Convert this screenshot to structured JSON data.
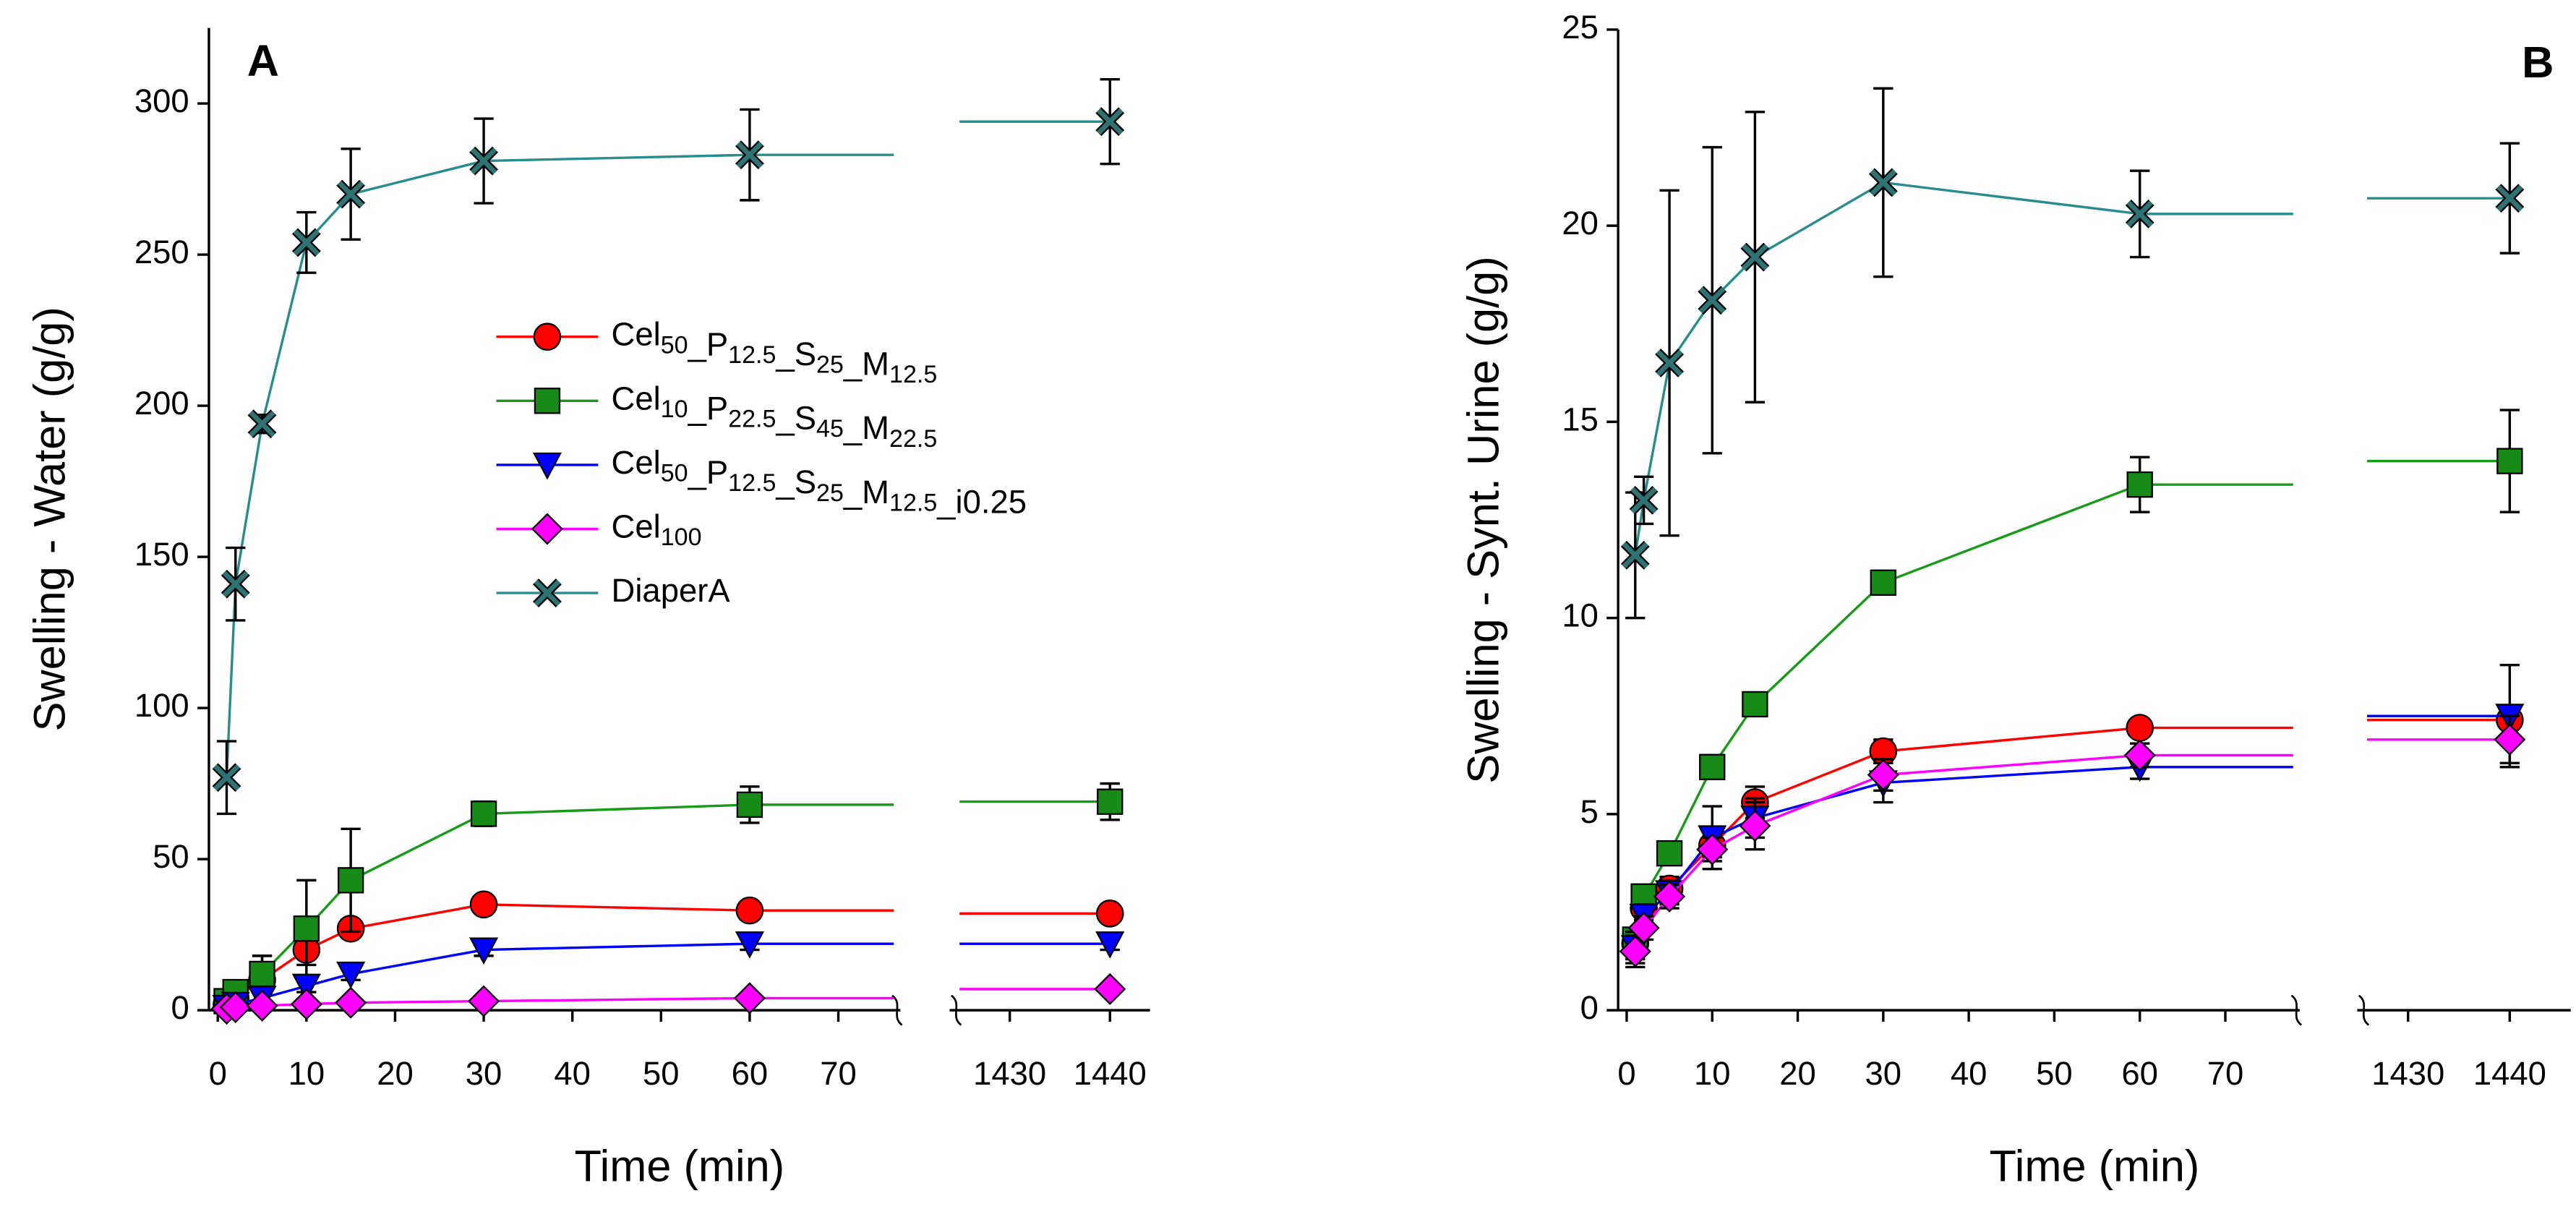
{
  "chart_data": [
    {
      "type": "line",
      "label": "A",
      "label_loc": "upper left",
      "legend_loc": "center",
      "xlabel": "Time (min)",
      "ylabel": "Swelling - Water (g/g)",
      "x": [
        1,
        2,
        5,
        10,
        15,
        30,
        60,
        1440
      ],
      "xlim": [
        [
          -1,
          77
        ],
        [
          1424,
          1444
        ]
      ],
      "xticks": [
        0,
        10,
        20,
        30,
        40,
        50,
        60,
        70,
        1430,
        1440
      ],
      "ylim": [
        0,
        325
      ],
      "yticks": [
        0,
        50,
        100,
        150,
        200,
        250,
        300
      ],
      "series": [
        {
          "name": "Cel50_P12.5_S25_M12.5",
          "color": "#ff0000",
          "marker": "circle",
          "values": [
            2,
            4,
            10,
            20,
            27,
            35,
            33,
            32
          ],
          "errors": [
            1,
            2,
            8,
            5,
            3,
            2,
            2,
            2
          ]
        },
        {
          "name": "Cel10_P22.5_S45_M22.5",
          "color": "#1a9a1a",
          "marker": "square",
          "values": [
            3,
            6,
            12,
            27,
            43,
            65,
            68,
            69
          ],
          "errors": [
            1,
            2,
            6,
            16,
            17,
            4,
            6,
            6
          ]
        },
        {
          "name": "Cel50_P12.5_S25_M12.5_i0.25",
          "color": "#0000ff",
          "marker": "triangle-down",
          "values": [
            1,
            2,
            4,
            8,
            12,
            20,
            22,
            22
          ],
          "errors": [
            1,
            1,
            2,
            2,
            2,
            2,
            2,
            2
          ]
        },
        {
          "name": "Cel100",
          "color": "#ff00ff",
          "marker": "diamond",
          "values": [
            0.5,
            1,
            1.5,
            2,
            2.5,
            3,
            4,
            7
          ],
          "errors": [
            0.5,
            0.5,
            0.5,
            0.5,
            0.5,
            0.5,
            0.5,
            0.5
          ]
        },
        {
          "name": "DiaperA",
          "color": "#2a8c8c",
          "marker": "x",
          "values": [
            77,
            141,
            194,
            254,
            270,
            281,
            283,
            294
          ],
          "errors": [
            12,
            12,
            3,
            10,
            15,
            14,
            15,
            14
          ]
        }
      ]
    },
    {
      "type": "line",
      "label": "B",
      "label_loc": "upper right",
      "xlabel": "Time (min)",
      "ylabel": "Swelling - Synt. Urine (g/g)",
      "x": [
        1,
        2,
        5,
        10,
        15,
        30,
        60,
        1440
      ],
      "xlim": [
        [
          -1,
          78.7
        ],
        [
          1425,
          1446
        ]
      ],
      "xticks": [
        0,
        10,
        20,
        30,
        40,
        50,
        60,
        70,
        1430,
        1440
      ],
      "ylim": [
        0,
        25
      ],
      "yticks": [
        0,
        5,
        10,
        15,
        20,
        25
      ],
      "series": [
        {
          "name": "Cel50_P12.5_S25_M12.5",
          "color": "#ff0000",
          "marker": "circle",
          "values": [
            1.7,
            2.6,
            3.1,
            4.2,
            5.3,
            6.6,
            7.2,
            7.4
          ],
          "errors": [
            0.4,
            0.3,
            0.3,
            0.3,
            0.4,
            0.3,
            0.2,
            0.2
          ]
        },
        {
          "name": "Cel10_P22.5_S45_M22.5",
          "color": "#1a9a1a",
          "marker": "square",
          "values": [
            1.8,
            2.9,
            4,
            6.2,
            7.8,
            10.9,
            13.4,
            14
          ],
          "errors": [
            0.3,
            0.3,
            0.3,
            0.3,
            0.3,
            0.3,
            0.7,
            1.3
          ]
        },
        {
          "name": "Cel50_P12.5_S25_M12.5_i0.25",
          "color": "#0000ff",
          "marker": "triangle-down",
          "values": [
            1.6,
            2.4,
            3,
            4.4,
            4.9,
            5.8,
            6.2,
            7.5
          ],
          "errors": [
            0.4,
            0.3,
            0.3,
            0.8,
            0.5,
            0.5,
            0.3,
            1.3
          ]
        },
        {
          "name": "Cel100",
          "color": "#ff00ff",
          "marker": "diamond",
          "values": [
            1.5,
            2.1,
            2.9,
            4.1,
            4.7,
            6,
            6.5,
            6.9
          ],
          "errors": [
            0.4,
            0.3,
            0.3,
            0.3,
            0.6,
            0.4,
            0.3,
            0.6
          ]
        },
        {
          "name": "DiaperA",
          "color": "#2a8c8c",
          "marker": "x",
          "values": [
            11.6,
            13,
            16.5,
            18.1,
            19.2,
            21.1,
            20.3,
            20.7
          ],
          "errors": [
            1.6,
            0.6,
            4.4,
            3.9,
            3.7,
            2.4,
            1.1,
            1.4
          ]
        }
      ]
    }
  ]
}
